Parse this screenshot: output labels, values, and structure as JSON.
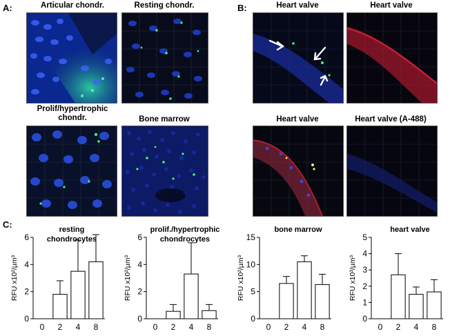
{
  "panels": {
    "a_letter": "A:",
    "b_letter": "B:",
    "c_letter": "C:"
  },
  "images": {
    "a1": "Articular chondr.",
    "a2": "Resting chondr.",
    "a3": "Prolif/hypertrophic chondr.",
    "a4": "Bone marrow",
    "b1": "Heart valve",
    "b2": "Heart valve",
    "b3": "Heart valve",
    "b4": "Heart valve (A-488)"
  },
  "colors": {
    "nuclei": "#1f3fd0",
    "signal_green": "#3cff6a",
    "signal_red": "#e0203a",
    "background": "#050810"
  },
  "chart_data": [
    {
      "type": "bar",
      "title": "resting chondrocytes",
      "title_lines": [
        "resting",
        "chondrocytes"
      ],
      "ylabel": "RFU x10²/µm³",
      "categories": [
        "0",
        "2",
        "4",
        "8"
      ],
      "values": [
        0,
        1.8,
        3.5,
        4.2
      ],
      "errors": [
        0,
        1.0,
        2.3,
        2.0
      ],
      "ylim": [
        0,
        6
      ],
      "yticks": [
        0,
        2,
        4,
        6
      ]
    },
    {
      "type": "bar",
      "title": "prolif./hypertrophic chondrocytes",
      "title_lines": [
        "prolif./hypertrophic",
        "chondrocytes"
      ],
      "ylabel": "RFU x10²/µm³",
      "categories": [
        "0",
        "2",
        "4",
        "8"
      ],
      "values": [
        0,
        0.55,
        3.3,
        0.6
      ],
      "errors": [
        0,
        0.5,
        2.3,
        0.45
      ],
      "ylim": [
        0,
        6
      ],
      "yticks": [
        0,
        2,
        4,
        6
      ]
    },
    {
      "type": "bar",
      "title": "bone marrow",
      "title_lines": [
        "bone marrow"
      ],
      "ylabel": "RFU x10²/µm³",
      "categories": [
        "0",
        "2",
        "4",
        "8"
      ],
      "values": [
        0,
        6.5,
        10.5,
        6.3
      ],
      "errors": [
        0,
        1.3,
        1.1,
        1.9
      ],
      "ylim": [
        0,
        15
      ],
      "yticks": [
        0,
        5,
        10,
        15
      ]
    },
    {
      "type": "bar",
      "title": "heart valve",
      "title_lines": [
        "heart valve"
      ],
      "ylabel": "RFU x10³/µm³",
      "categories": [
        "0",
        "2",
        "4",
        "8"
      ],
      "values": [
        0,
        2.7,
        1.5,
        1.65
      ],
      "errors": [
        0,
        1.3,
        0.45,
        0.75
      ],
      "ylim": [
        0,
        5
      ],
      "yticks": [
        0,
        1,
        2,
        3,
        4,
        5
      ]
    }
  ]
}
